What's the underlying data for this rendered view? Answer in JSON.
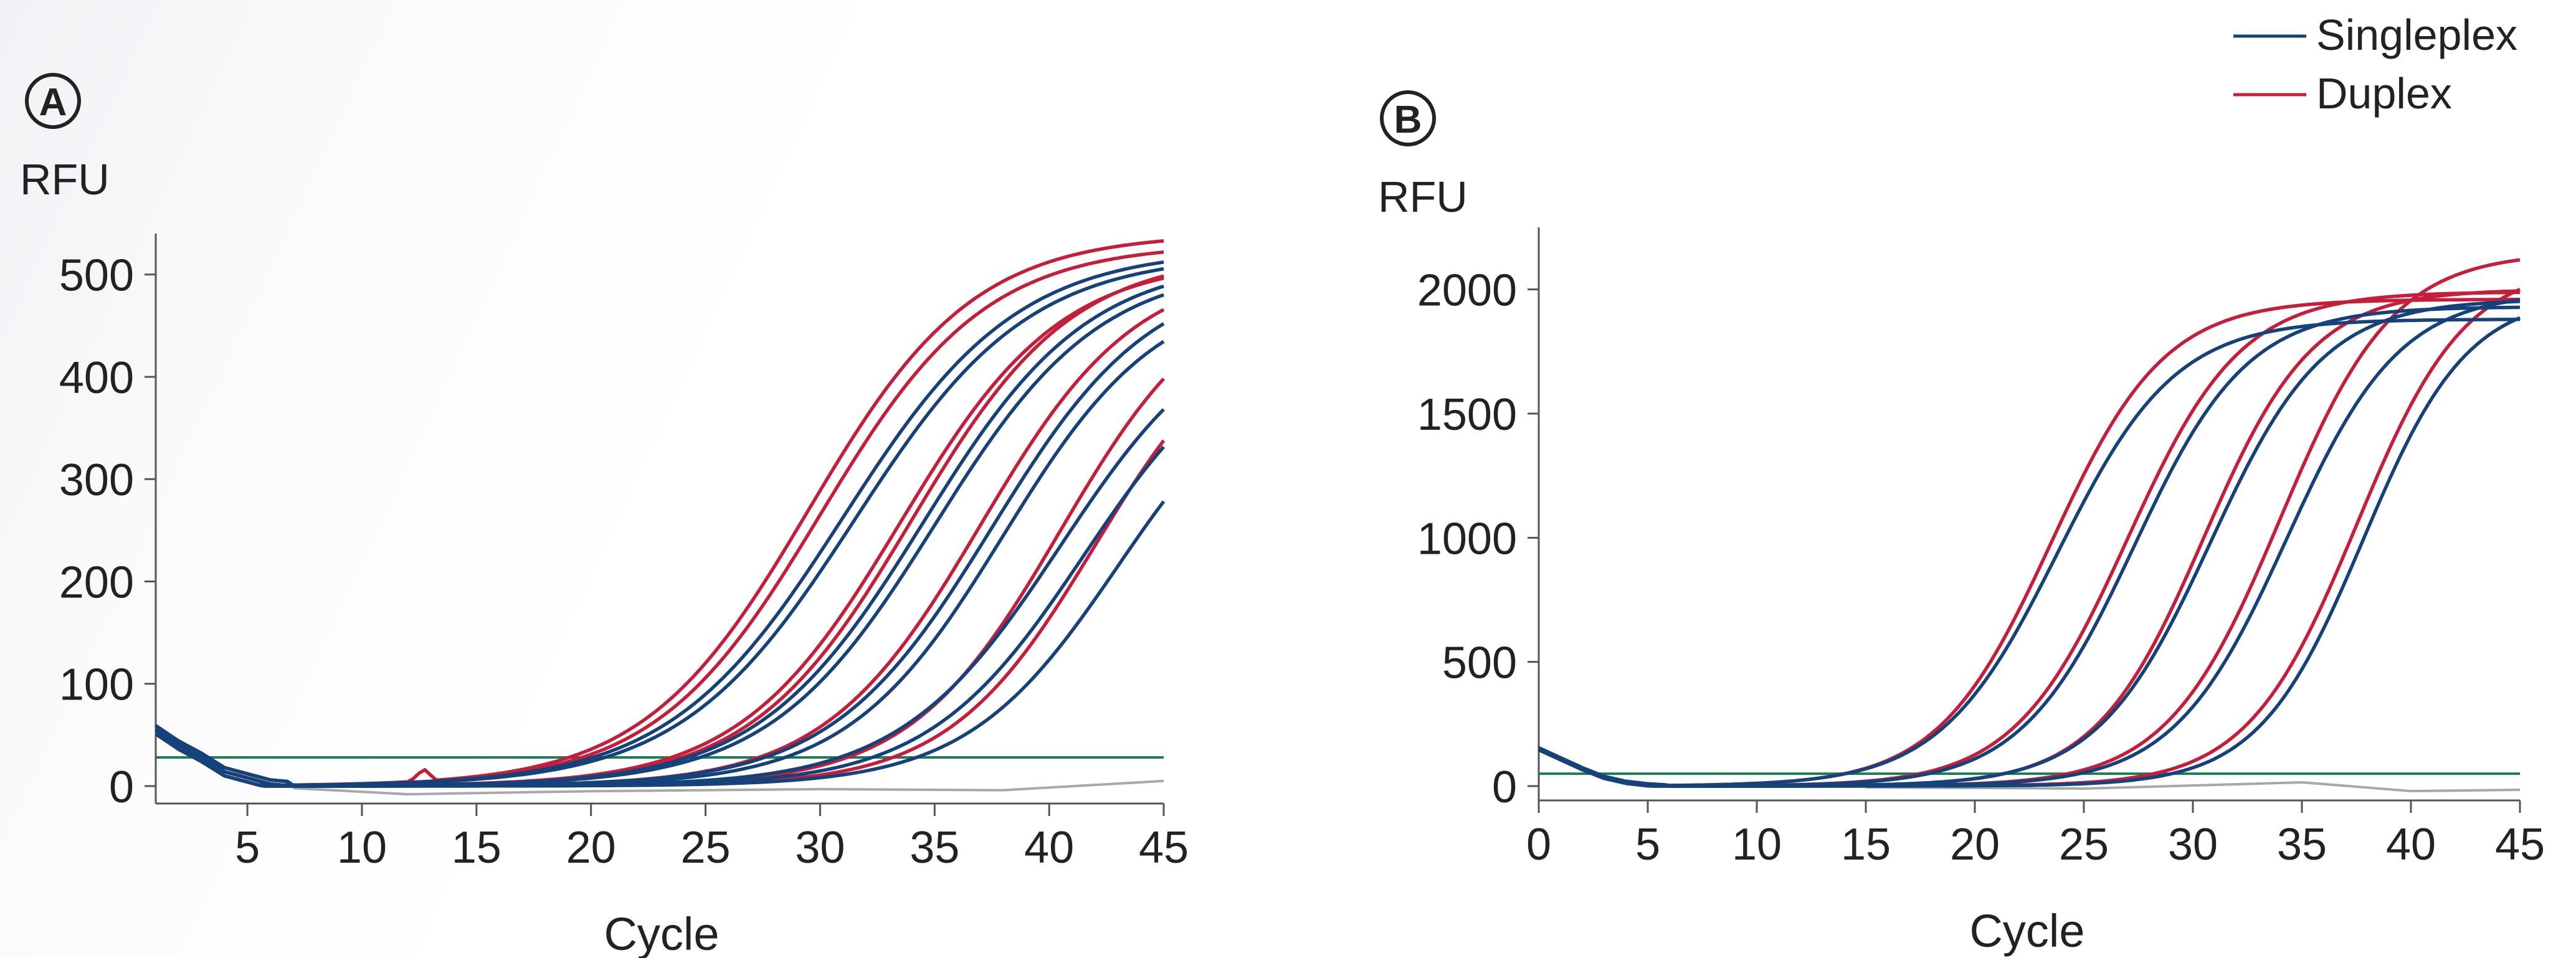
{
  "legend": {
    "placement": "top-right",
    "items": [
      {
        "label": "Singleplex",
        "color": "#15427a"
      },
      {
        "label": "Duplex",
        "color": "#c41e3a"
      }
    ]
  },
  "colors": {
    "threshold": "#1f7a55",
    "baseline_gray": "#a8a8a8",
    "axis": "#555555"
  },
  "chart_data": [
    {
      "type": "line",
      "panel_label": "A",
      "xlabel": "Cycle",
      "ylabel": "RFU",
      "xlim": [
        1,
        45
      ],
      "ylim": [
        0,
        540
      ],
      "xticks": [
        5,
        10,
        15,
        20,
        25,
        30,
        35,
        40,
        45
      ],
      "yticks": [
        0,
        100,
        200,
        300,
        400,
        500
      ],
      "threshold": 28,
      "grid": false,
      "curve_model": {
        "start": 1,
        "end": 45,
        "early_values": [
          55,
          40,
          28,
          14,
          8,
          2,
          0
        ],
        "spike": {
          "x": 12.7,
          "y": 17
        }
      },
      "series": [
        {
          "color": "#c41e3a",
          "max": 540,
          "mid": 29.5,
          "slope": 3.6
        },
        {
          "color": "#c41e3a",
          "max": 530,
          "mid": 30.0,
          "slope": 3.6
        },
        {
          "color": "#c41e3a",
          "max": 515,
          "mid": 33.5,
          "slope": 3.5
        },
        {
          "color": "#c41e3a",
          "max": 520,
          "mid": 34.0,
          "slope": 3.5
        },
        {
          "color": "#c41e3a",
          "max": 510,
          "mid": 37.0,
          "slope": 3.4
        },
        {
          "color": "#c41e3a",
          "max": 500,
          "mid": 40.5,
          "slope": 3.3
        },
        {
          "color": "#c41e3a",
          "max": 470,
          "mid": 42.0,
          "slope": 3.2
        },
        {
          "color": "#15427a",
          "max": 525,
          "mid": 31.0,
          "slope": 3.8
        },
        {
          "color": "#15427a",
          "max": 520,
          "mid": 31.5,
          "slope": 3.8
        },
        {
          "color": "#15427a",
          "max": 515,
          "mid": 34.5,
          "slope": 3.6
        },
        {
          "color": "#15427a",
          "max": 510,
          "mid": 35.0,
          "slope": 3.6
        },
        {
          "color": "#15427a",
          "max": 505,
          "mid": 37.5,
          "slope": 3.5
        },
        {
          "color": "#15427a",
          "max": 490,
          "mid": 38.0,
          "slope": 3.4
        },
        {
          "color": "#15427a",
          "max": 470,
          "mid": 40.5,
          "slope": 3.5
        },
        {
          "color": "#15427a",
          "max": 450,
          "mid": 41.5,
          "slope": 3.4
        },
        {
          "color": "#15427a",
          "max": 430,
          "mid": 43.0,
          "slope": 3.3
        }
      ],
      "baseline_series": [
        {
          "color": "#a8a8a8",
          "points": [
            [
              7,
              -2
            ],
            [
              12,
              -8
            ],
            [
              20,
              -5
            ],
            [
              30,
              -3
            ],
            [
              38,
              -4
            ],
            [
              45,
              5
            ]
          ]
        }
      ]
    },
    {
      "type": "line",
      "panel_label": "B",
      "xlabel": "Cycle",
      "ylabel": "RFU",
      "xlim": [
        0,
        45
      ],
      "ylim": [
        0,
        2250
      ],
      "xticks": [
        0,
        5,
        10,
        15,
        20,
        25,
        30,
        35,
        40,
        45
      ],
      "yticks": [
        0,
        500,
        1000,
        1500,
        2000
      ],
      "threshold": 50,
      "grid": false,
      "curve_model": {
        "start": 0,
        "end": 45,
        "early_values": [
          150,
          110,
          70,
          35,
          15,
          5,
          0
        ]
      },
      "series": [
        {
          "color": "#c41e3a",
          "max": 1960,
          "mid": 23.5,
          "slope": 2.6
        },
        {
          "color": "#c41e3a",
          "max": 1990,
          "mid": 27.0,
          "slope": 2.6
        },
        {
          "color": "#c41e3a",
          "max": 2000,
          "mid": 30.5,
          "slope": 2.5
        },
        {
          "color": "#c41e3a",
          "max": 2150,
          "mid": 34.0,
          "slope": 2.6
        },
        {
          "color": "#c41e3a",
          "max": 2100,
          "mid": 37.5,
          "slope": 2.5
        },
        {
          "color": "#15427a",
          "max": 1880,
          "mid": 23.8,
          "slope": 2.7
        },
        {
          "color": "#15427a",
          "max": 1930,
          "mid": 27.3,
          "slope": 2.6
        },
        {
          "color": "#15427a",
          "max": 1960,
          "mid": 30.8,
          "slope": 2.6
        },
        {
          "color": "#15427a",
          "max": 1990,
          "mid": 34.3,
          "slope": 2.6
        },
        {
          "color": "#15427a",
          "max": 1980,
          "mid": 37.8,
          "slope": 2.4
        }
      ],
      "baseline_series": [
        {
          "color": "#a8a8a8",
          "points": [
            [
              15,
              -5
            ],
            [
              25,
              -10
            ],
            [
              35,
              15
            ],
            [
              40,
              -20
            ],
            [
              45,
              -15
            ]
          ]
        }
      ]
    }
  ]
}
